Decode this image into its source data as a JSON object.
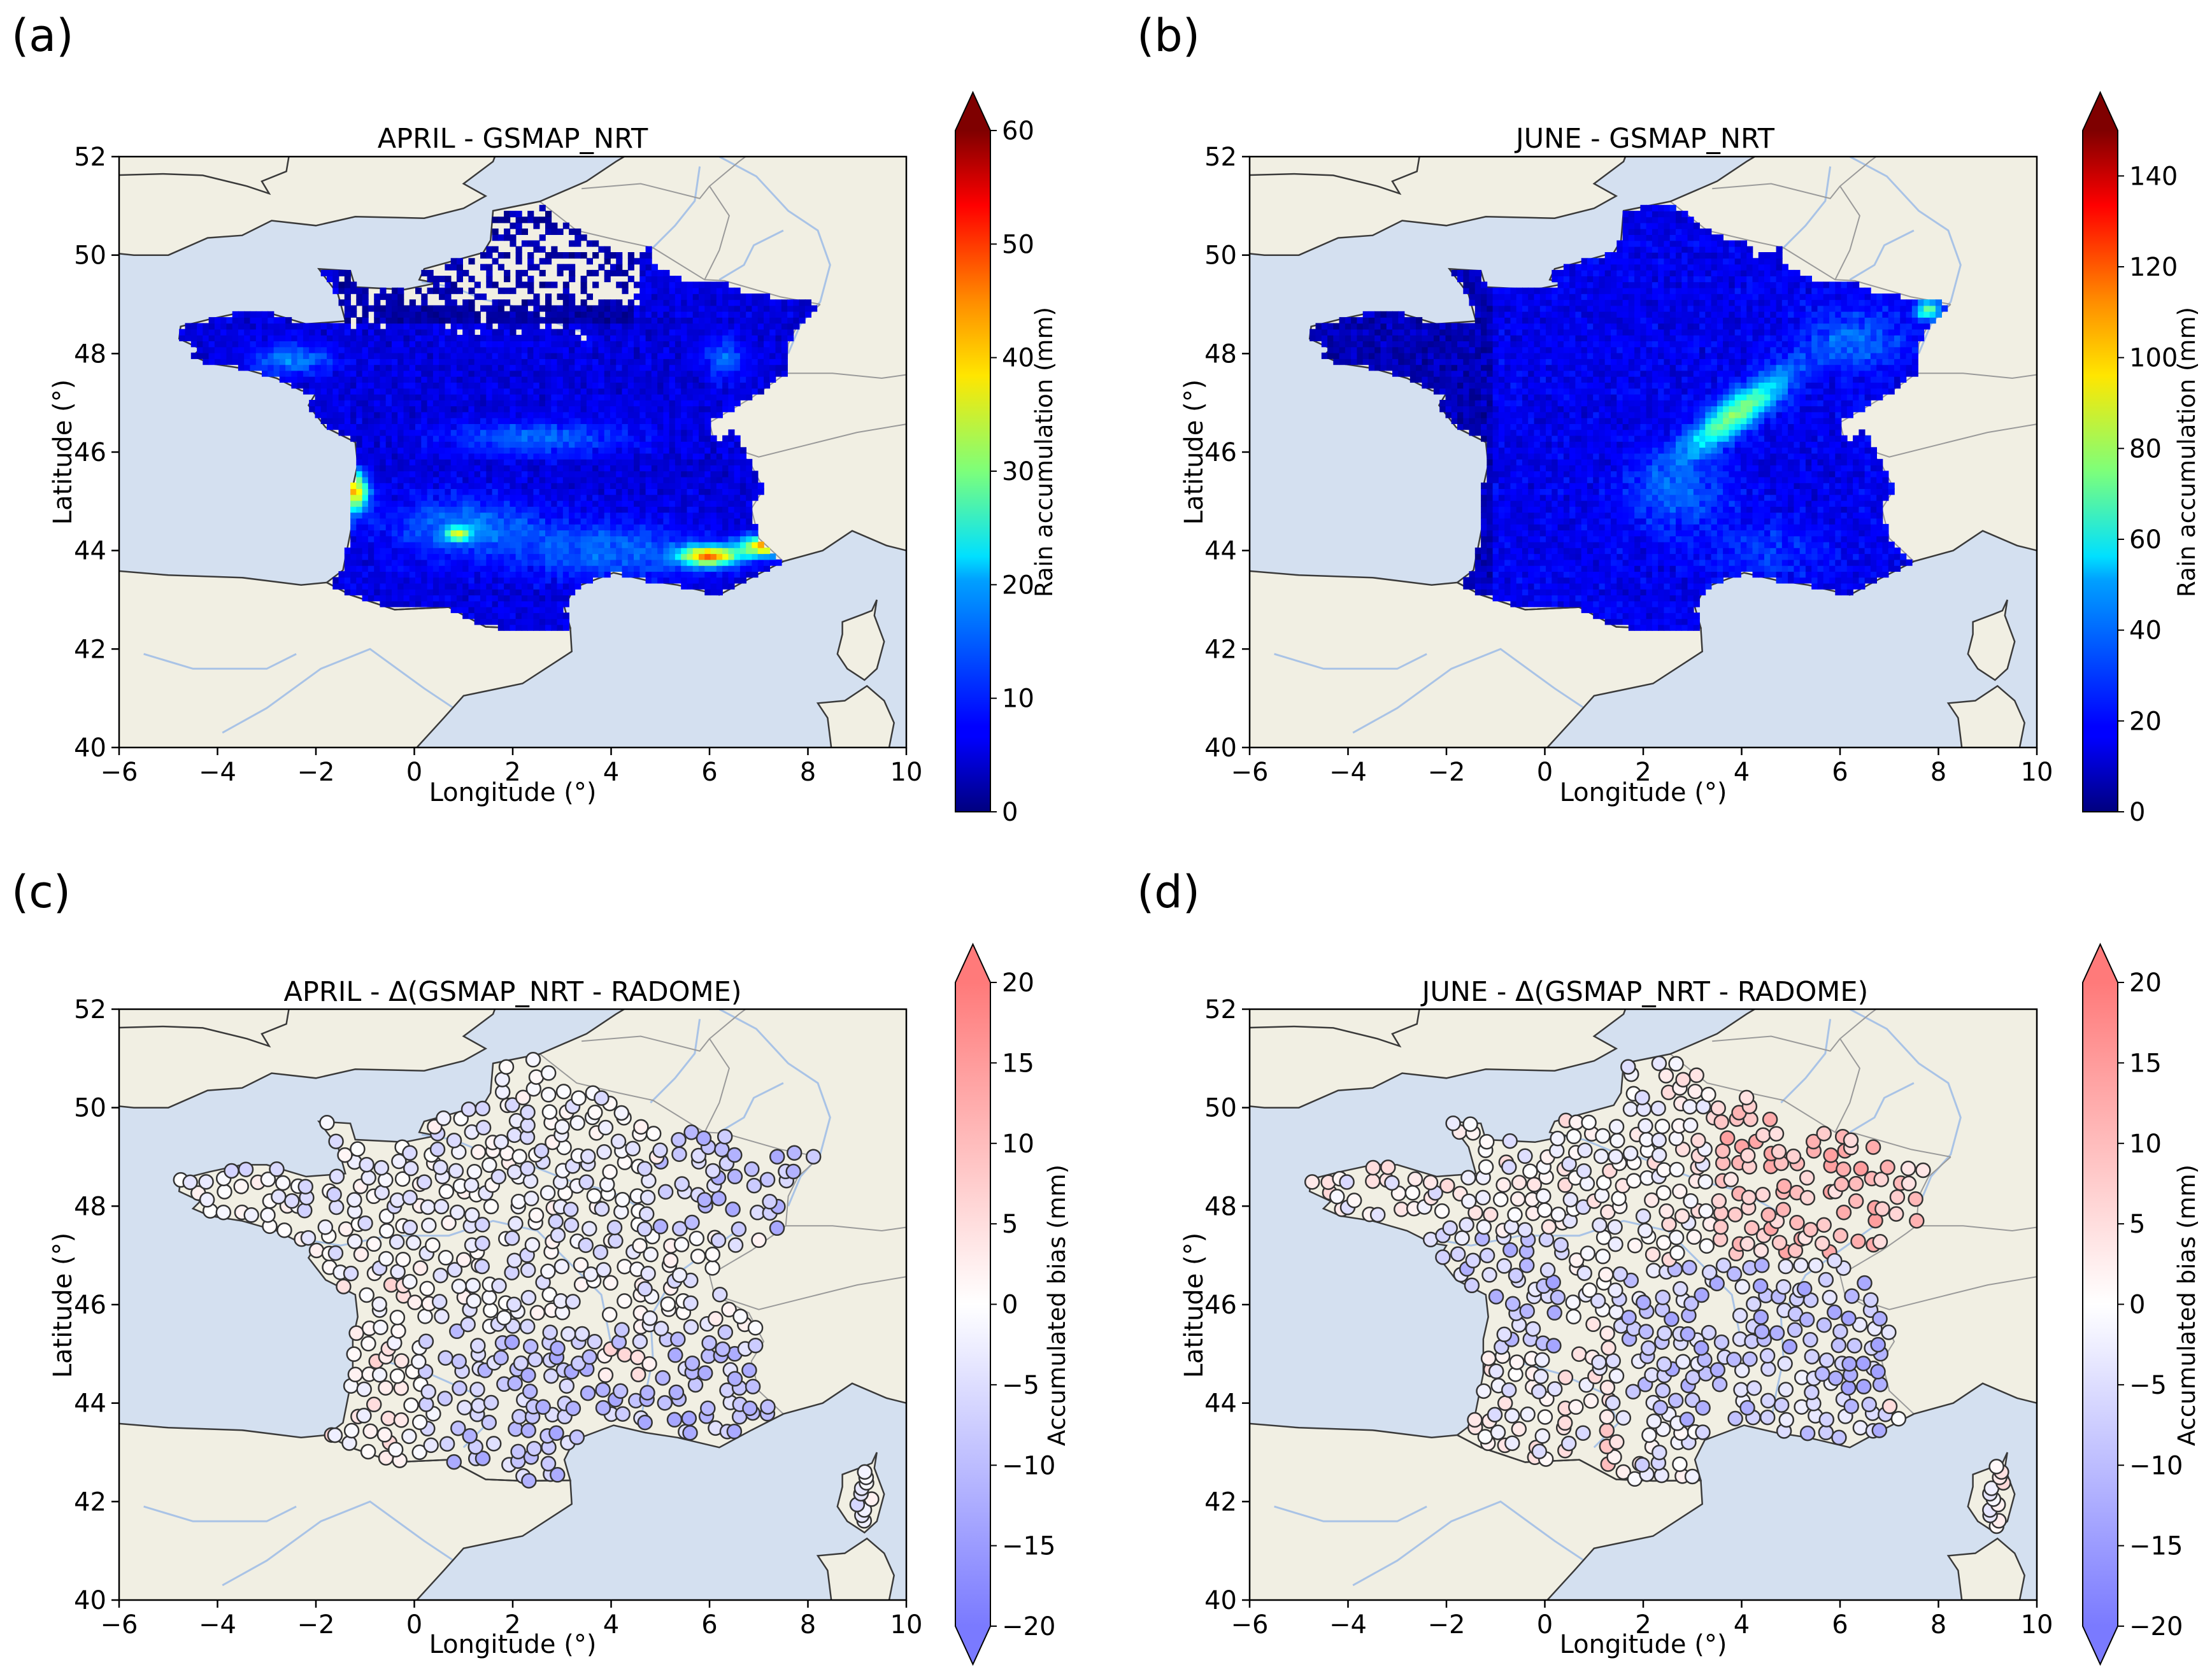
{
  "panels": [
    {
      "id": "a",
      "letter": "(a)",
      "title": "APRIL - GSMAP_NRT",
      "type": "grid",
      "xlabel": "Longitude (°)",
      "ylabel": "Latitude (°)",
      "xticks": [
        "−6",
        "−4",
        "−2",
        "0",
        "2",
        "4",
        "6",
        "8",
        "10"
      ],
      "yticks": [
        "40",
        "42",
        "44",
        "46",
        "48",
        "50",
        "52"
      ],
      "colorbar": {
        "label": "Rain accumulation (mm)",
        "cmap": "jet",
        "range": [
          0,
          60
        ],
        "ticks": [
          "0",
          "10",
          "20",
          "30",
          "40",
          "50",
          "60"
        ],
        "extend": "max"
      }
    },
    {
      "id": "b",
      "letter": "(b)",
      "title": "JUNE - GSMAP_NRT",
      "type": "grid",
      "xlabel": "Longitude (°)",
      "ylabel": "Latitude (°)",
      "xticks": [
        "−6",
        "−4",
        "−2",
        "0",
        "2",
        "4",
        "6",
        "8",
        "10"
      ],
      "yticks": [
        "40",
        "42",
        "44",
        "46",
        "48",
        "50",
        "52"
      ],
      "colorbar": {
        "label": "Rain accumulation (mm)",
        "cmap": "jet",
        "range": [
          0,
          150
        ],
        "ticks": [
          "0",
          "20",
          "40",
          "60",
          "80",
          "100",
          "120",
          "140"
        ],
        "extend": "max"
      }
    },
    {
      "id": "c",
      "letter": "(c)",
      "title": "APRIL - Δ(GSMAP_NRT - RADOME)",
      "type": "stations",
      "xlabel": "Longitude (°)",
      "ylabel": "Latitude (°)",
      "xticks": [
        "−6",
        "−4",
        "−2",
        "0",
        "2",
        "4",
        "6",
        "8",
        "10"
      ],
      "yticks": [
        "40",
        "42",
        "44",
        "46",
        "48",
        "50",
        "52"
      ],
      "colorbar": {
        "label": "Accumulated bias (mm)",
        "cmap": "bwr",
        "range": [
          -20,
          20
        ],
        "ticks": [
          "−20",
          "−15",
          "−10",
          "−5",
          "0",
          "5",
          "10",
          "15",
          "20"
        ],
        "extend": "both"
      }
    },
    {
      "id": "d",
      "letter": "(d)",
      "title": "JUNE - Δ(GSMAP_NRT - RADOME)",
      "type": "stations",
      "xlabel": "Longitude (°)",
      "ylabel": "Latitude (°)",
      "xticks": [
        "−6",
        "−4",
        "−2",
        "0",
        "2",
        "4",
        "6",
        "8",
        "10"
      ],
      "yticks": [
        "40",
        "42",
        "44",
        "46",
        "48",
        "50",
        "52"
      ],
      "colorbar": {
        "label": "Accumulated bias (mm)",
        "cmap": "bwr",
        "range": [
          -20,
          20
        ],
        "ticks": [
          "−20",
          "−15",
          "−10",
          "−5",
          "0",
          "5",
          "10",
          "15",
          "20"
        ],
        "extend": "both"
      }
    }
  ],
  "map": {
    "extent": {
      "lon": [
        -6,
        10
      ],
      "lat": [
        40,
        52
      ]
    },
    "colors": {
      "sea": "#d4e0f0",
      "land": "#f1efe3",
      "coast": "#3a3a3a",
      "river": "#a9c3e6",
      "border": "#9a9a9a"
    }
  }
}
